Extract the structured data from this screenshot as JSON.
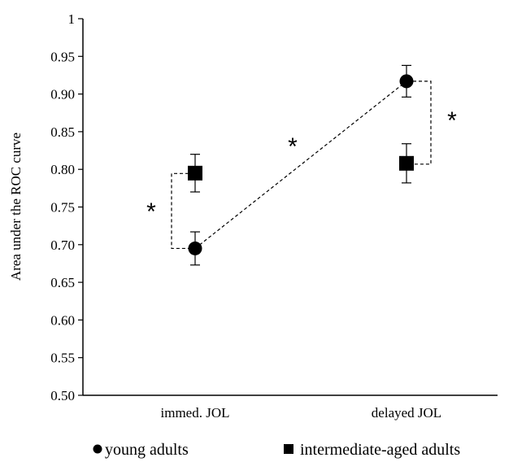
{
  "chart_data": {
    "type": "scatter",
    "title": "",
    "xlabel": "",
    "ylabel": "Area under the ROC curve",
    "categories": [
      "immed. JOL",
      "delayed JOL"
    ],
    "ylim": [
      0.5,
      1.0
    ],
    "y_ticks": [
      "0.50",
      "0.55",
      "0.60",
      "0.65",
      "0.70",
      "0.75",
      "0.80",
      "0.85",
      "0.90",
      "0.95",
      "1"
    ],
    "series": [
      {
        "name": "young adults",
        "marker": "circle",
        "values": [
          0.695,
          0.917
        ],
        "error": [
          0.022,
          0.021
        ]
      },
      {
        "name": "intermediate-aged adults",
        "marker": "square",
        "values": [
          0.795,
          0.808
        ],
        "error": [
          0.025,
          0.026
        ]
      }
    ],
    "annotations": [
      "*",
      "*",
      "*"
    ],
    "legend_position": "bottom",
    "grid": false
  }
}
